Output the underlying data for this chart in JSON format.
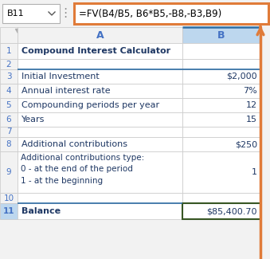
{
  "title_bar_text": "B11",
  "formula_text": "=FV(B4/B5, B6*B5,-B8,-B3,B9)",
  "rows": [
    {
      "row": 1,
      "col_a": "Compound Interest Calculator",
      "col_b": "",
      "a_bold": true
    },
    {
      "row": 2,
      "col_a": "",
      "col_b": ""
    },
    {
      "row": 3,
      "col_a": "Initial Investment",
      "col_b": "$2,000"
    },
    {
      "row": 4,
      "col_a": "Annual interest rate",
      "col_b": "7%"
    },
    {
      "row": 5,
      "col_a": "Compounding periods per year",
      "col_b": "12"
    },
    {
      "row": 6,
      "col_a": "Years",
      "col_b": "15"
    },
    {
      "row": 7,
      "col_a": "",
      "col_b": ""
    },
    {
      "row": 8,
      "col_a": "Additional contributions",
      "col_b": "$250"
    },
    {
      "row": 9,
      "col_a": "Additional contributions type:\n0 - at the end of the period\n1 - at the beginning",
      "col_b": "1"
    },
    {
      "row": 10,
      "col_a": "",
      "col_b": ""
    },
    {
      "row": 11,
      "col_a": "Balance",
      "col_b": "$85,400.70",
      "a_bold": true,
      "highlight": true
    }
  ],
  "formula_bar_border": "#e07b39",
  "col_header_color": "#4472c4",
  "row_num_color": "#4472c4",
  "grid_color": "#c8c8c8",
  "text_color": "#1f3864",
  "highlight_border_color": "#375623",
  "orange_color": "#e07b39",
  "col_b_header_bg": "#bdd7ee",
  "col_b_header_border": "#2e6da4",
  "row11_num_bg": "#bdd7ee",
  "blue_border_color": "#2e6da4",
  "name_box_bg": "#ffffff",
  "formula_bar_bg": "#ffffff",
  "cell_bg": "#ffffff",
  "header_bg": "#f2f2f2"
}
